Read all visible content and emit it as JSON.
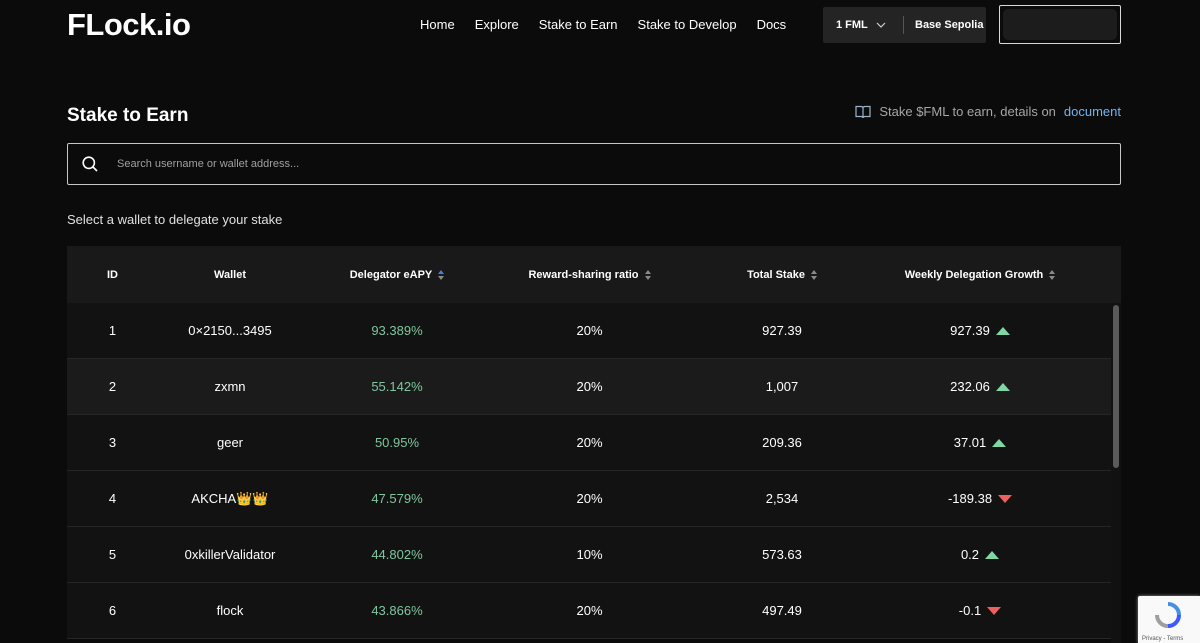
{
  "brand": {
    "logo": "FLock.io"
  },
  "nav": {
    "links": [
      "Home",
      "Explore",
      "Stake to Earn",
      "Stake to Develop",
      "Docs"
    ],
    "token_label": "1 FML",
    "network_label": "Base Sepolia"
  },
  "page": {
    "title": "Stake to Earn",
    "doc_note_prefix": "Stake $FML to earn, details on",
    "doc_link": "document"
  },
  "search": {
    "placeholder": "Search username or wallet address..."
  },
  "select_message": "Select a wallet to delegate your stake",
  "table": {
    "headers": {
      "id": "ID",
      "wallet": "Wallet",
      "apy": "Delegator eAPY",
      "ratio": "Reward-sharing ratio",
      "stake": "Total Stake",
      "growth": "Weekly Delegation Growth"
    },
    "rows": [
      {
        "id": "1",
        "wallet": "0×2150...3495",
        "apy": "93.389%",
        "ratio": "20%",
        "stake": "927.39",
        "growth": "927.39",
        "trend": "up"
      },
      {
        "id": "2",
        "wallet": "zxmn",
        "apy": "55.142%",
        "ratio": "20%",
        "stake": "1,007",
        "growth": "232.06",
        "trend": "up"
      },
      {
        "id": "3",
        "wallet": "geer",
        "apy": "50.95%",
        "ratio": "20%",
        "stake": "209.36",
        "growth": "37.01",
        "trend": "up"
      },
      {
        "id": "4",
        "wallet": "AKCHA👑👑",
        "apy": "47.579%",
        "ratio": "20%",
        "stake": "2,534",
        "growth": "-189.38",
        "trend": "down"
      },
      {
        "id": "5",
        "wallet": "0xkillerValidator",
        "apy": "44.802%",
        "ratio": "10%",
        "stake": "573.63",
        "growth": "0.2",
        "trend": "up"
      },
      {
        "id": "6",
        "wallet": "flock",
        "apy": "43.866%",
        "ratio": "20%",
        "stake": "497.49",
        "growth": "-0.1",
        "trend": "down"
      }
    ]
  },
  "colors": {
    "apy": "#7fc79f",
    "trend_up": "#7fd7a5",
    "trend_down": "#ef5f5f",
    "link": "#72b4ee"
  },
  "recaptcha": {
    "text": "Privacy - Terms"
  }
}
